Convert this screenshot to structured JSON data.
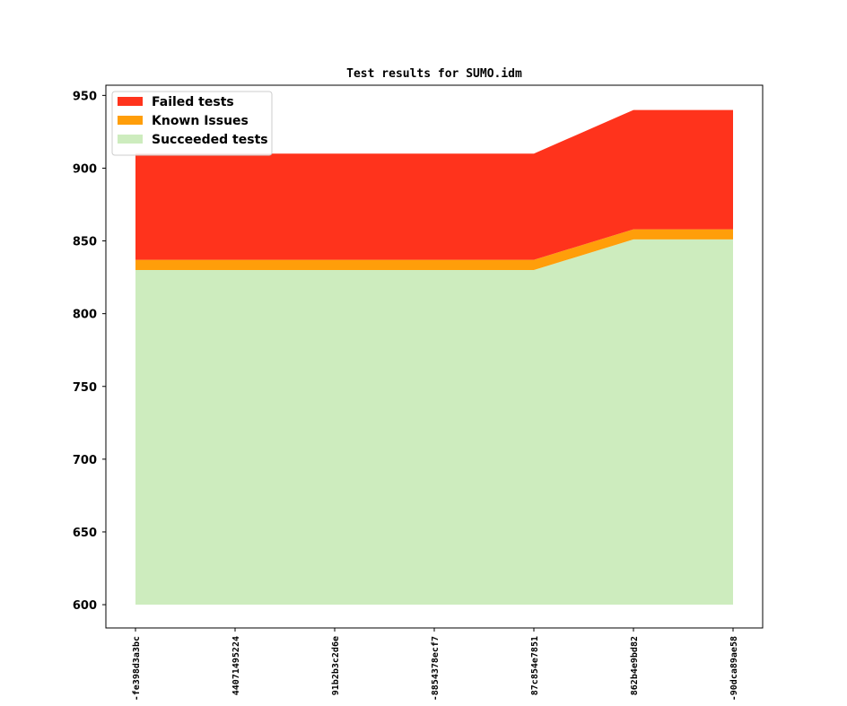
{
  "chart_data": {
    "type": "area",
    "title": "Test results for SUMO.idm",
    "xlabel": "",
    "ylabel": "",
    "categories": [
      "-fe398d3a3bc",
      "4407149522­4",
      "91b2b3c2d6e",
      "-8854378ecf7",
      "87c854e7851",
      "862b4e9bd82",
      "-90dca89ae58"
    ],
    "ylim": [
      584,
      957
    ],
    "yticks": [
      600,
      650,
      700,
      750,
      800,
      850,
      900,
      950
    ],
    "baseline": 600,
    "series": [
      {
        "name": "Succeeded tests",
        "values": [
          830,
          830,
          830,
          830,
          830,
          851,
          851
        ]
      },
      {
        "name": "Known Issues",
        "values": [
          7,
          7,
          7,
          7,
          7,
          7,
          7
        ]
      },
      {
        "name": "Failed tests",
        "values": [
          73,
          73,
          73,
          73,
          73,
          82,
          82
        ]
      }
    ],
    "colors": {
      "Failed tests": "#ff331c",
      "Known Issues": "#ff9e0a",
      "Succeeded tests": "#cdecbe"
    },
    "legend": {
      "position": "top-left",
      "entries": [
        "Failed tests",
        "Known Issues",
        "Succeeded tests"
      ]
    },
    "grid": false
  }
}
